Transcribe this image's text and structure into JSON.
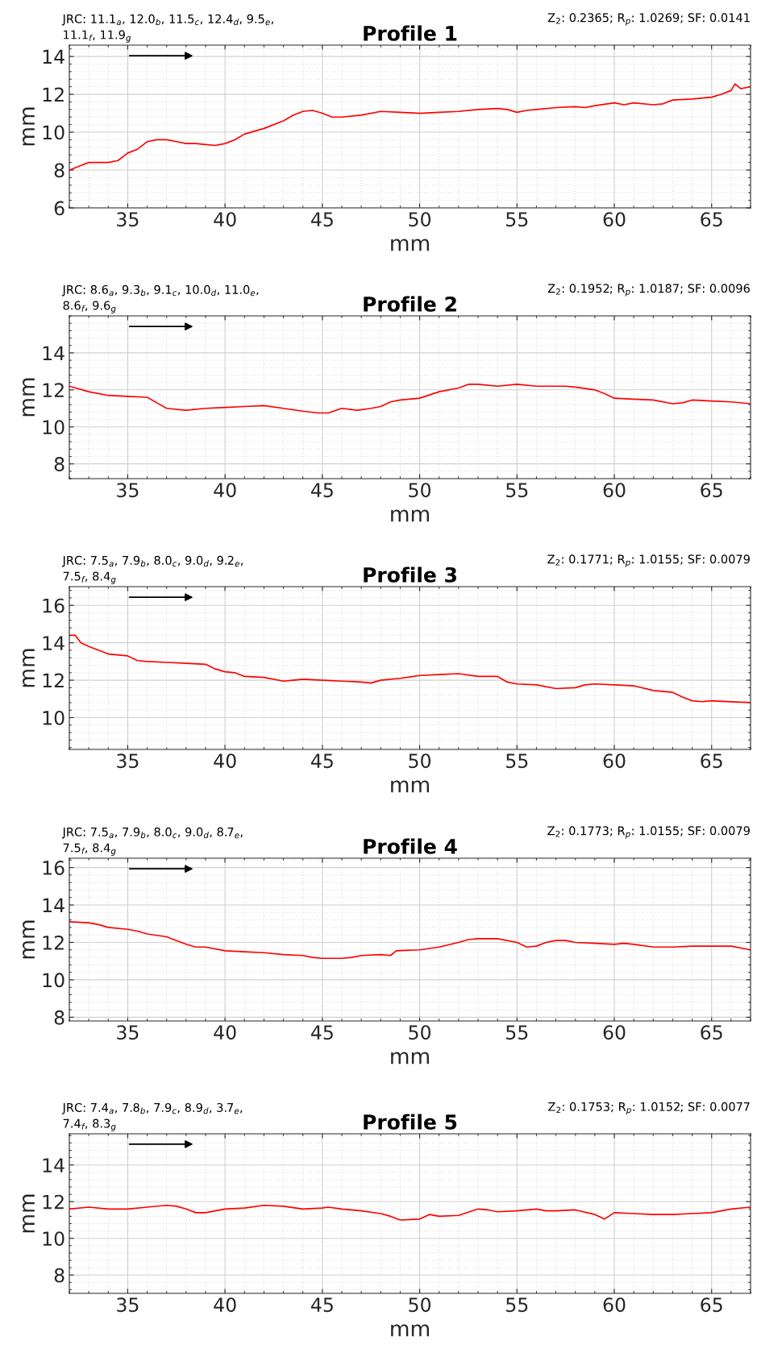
{
  "chart_data": [
    {
      "type": "line",
      "title": "Profile 1",
      "xlabel": "mm",
      "ylabel": "mm",
      "annotations": [
        "JRC: 11.1$_{a}$, 12.0$_{b}$, 11.5$_{c}$, 12.4$_{d}$, 9.5$_{e}$,\n11.1$_{f}$, 11.9$_{g}$",
        "Z$_{2}$: 0.2365; R$_{p}$: 1.0269; SF: 0.0141"
      ],
      "xlim": [
        32,
        67
      ],
      "ylim": [
        6,
        14.6
      ],
      "xticks": [
        35,
        40,
        45,
        50,
        55,
        60,
        65
      ],
      "yticks": [
        6,
        8,
        10,
        12,
        14
      ],
      "grid": true,
      "legend": false,
      "series": [
        {
          "color": "#ff0000",
          "x": [
            32,
            32.5,
            33,
            34,
            34.5,
            35,
            35.5,
            36,
            36.5,
            37,
            37.5,
            38,
            38.5,
            39,
            39.5,
            40,
            40.5,
            41,
            42,
            43,
            43.5,
            44,
            44.5,
            45,
            45.5,
            46,
            47,
            48,
            49,
            50,
            51,
            52,
            53,
            54,
            54.5,
            55,
            55.5,
            56,
            57,
            58,
            58.5,
            59,
            60,
            60.5,
            61,
            62,
            62.5,
            63,
            64,
            65,
            65.5,
            66,
            66.2,
            66.5,
            67
          ],
          "values": [
            8.0,
            8.2,
            8.4,
            8.4,
            8.5,
            8.9,
            9.1,
            9.5,
            9.6,
            9.6,
            9.5,
            9.4,
            9.4,
            9.35,
            9.3,
            9.4,
            9.6,
            9.9,
            10.2,
            10.6,
            10.9,
            11.1,
            11.15,
            11.0,
            10.8,
            10.8,
            10.9,
            11.1,
            11.05,
            11.0,
            11.05,
            11.1,
            11.2,
            11.25,
            11.2,
            11.05,
            11.15,
            11.2,
            11.3,
            11.35,
            11.3,
            11.4,
            11.55,
            11.45,
            11.55,
            11.45,
            11.5,
            11.7,
            11.75,
            11.85,
            12.0,
            12.2,
            12.55,
            12.3,
            12.4
          ]
        }
      ]
    },
    {
      "type": "line",
      "title": "Profile 2",
      "xlabel": "mm",
      "ylabel": "mm",
      "annotations": [
        "JRC: 8.6$_{a}$, 9.3$_{b}$, 9.1$_{c}$, 10.0$_{d}$, 11.0$_{e}$,\n8.6$_{f}$, 9.6$_{g}$",
        "Z$_{2}$: 0.1952; R$_{p}$: 1.0187; SF: 0.0096"
      ],
      "xlim": [
        32,
        67
      ],
      "ylim": [
        7.2,
        16
      ],
      "xticks": [
        35,
        40,
        45,
        50,
        55,
        60,
        65
      ],
      "yticks": [
        8,
        10,
        12,
        14
      ],
      "grid": true,
      "legend": false,
      "series": [
        {
          "color": "#ff0000",
          "x": [
            32,
            33,
            34,
            35,
            36,
            36.5,
            37,
            38,
            39,
            40,
            41,
            42,
            43,
            44,
            44.8,
            45.3,
            46,
            46.8,
            47.5,
            48,
            48.5,
            49,
            50,
            51,
            52,
            52.5,
            53,
            54,
            55,
            56,
            57,
            57.5,
            58,
            59,
            59.5,
            60,
            61,
            62,
            63,
            63.5,
            64,
            65,
            66,
            67
          ],
          "values": [
            12.2,
            11.9,
            11.7,
            11.65,
            11.6,
            11.3,
            11.0,
            10.9,
            11.0,
            11.05,
            11.1,
            11.15,
            11.0,
            10.85,
            10.75,
            10.75,
            11.0,
            10.9,
            11.0,
            11.1,
            11.35,
            11.45,
            11.55,
            11.9,
            12.1,
            12.3,
            12.3,
            12.2,
            12.3,
            12.2,
            12.2,
            12.2,
            12.15,
            12.0,
            11.8,
            11.55,
            11.5,
            11.45,
            11.25,
            11.3,
            11.45,
            11.4,
            11.35,
            11.25
          ]
        }
      ]
    },
    {
      "type": "line",
      "title": "Profile 3",
      "xlabel": "mm",
      "ylabel": "mm",
      "annotations": [
        "JRC: 7.5$_{a}$, 7.9$_{b}$, 8.0$_{c}$, 9.0$_{d}$, 9.2$_{e}$,\n7.5$_{f}$, 8.4$_{g}$",
        "Z$_{2}$: 0.1771; R$_{p}$: 1.0155; SF: 0.0079"
      ],
      "xlim": [
        32,
        67
      ],
      "ylim": [
        8.3,
        17
      ],
      "xticks": [
        35,
        40,
        45,
        50,
        55,
        60,
        65
      ],
      "yticks": [
        10,
        12,
        14,
        16
      ],
      "grid": true,
      "legend": false,
      "series": [
        {
          "color": "#ff0000",
          "x": [
            32,
            32.3,
            32.6,
            33,
            34,
            35,
            35.5,
            36,
            37,
            38,
            39,
            39.5,
            40,
            40.5,
            41,
            42,
            43,
            43.5,
            44,
            45,
            46,
            47,
            47.5,
            48,
            49,
            50,
            51,
            52,
            53,
            54,
            54.5,
            55,
            56,
            57,
            58,
            58.5,
            59,
            60,
            61,
            62,
            63,
            63.5,
            64,
            64.5,
            65,
            66,
            67
          ],
          "values": [
            14.4,
            14.4,
            14.0,
            13.8,
            13.4,
            13.3,
            13.05,
            13.0,
            12.95,
            12.9,
            12.85,
            12.6,
            12.45,
            12.4,
            12.2,
            12.15,
            11.95,
            12.0,
            12.05,
            12.0,
            11.95,
            11.9,
            11.85,
            12.0,
            12.1,
            12.25,
            12.3,
            12.35,
            12.2,
            12.2,
            11.9,
            11.8,
            11.75,
            11.55,
            11.6,
            11.75,
            11.8,
            11.75,
            11.7,
            11.45,
            11.35,
            11.1,
            10.9,
            10.85,
            10.9,
            10.85,
            10.8
          ]
        }
      ]
    },
    {
      "type": "line",
      "title": "Profile 4",
      "xlabel": "mm",
      "ylabel": "mm",
      "annotations": [
        "JRC: 7.5$_{a}$, 7.9$_{b}$, 8.0$_{c}$, 9.0$_{d}$, 8.7$_{e}$,\n7.5$_{f}$, 8.4$_{g}$",
        "Z$_{2}$: 0.1773; R$_{p}$: 1.0155; SF: 0.0079"
      ],
      "xlim": [
        32,
        67
      ],
      "ylim": [
        7.8,
        16.5
      ],
      "xticks": [
        35,
        40,
        45,
        50,
        55,
        60,
        65
      ],
      "yticks": [
        8,
        10,
        12,
        14,
        16
      ],
      "grid": true,
      "legend": false,
      "series": [
        {
          "color": "#ff0000",
          "x": [
            32,
            33,
            33.5,
            34,
            35,
            35.5,
            36,
            37,
            37.5,
            38,
            38.5,
            39,
            40,
            41,
            42,
            43,
            44,
            44.5,
            45,
            46,
            46.5,
            47,
            48,
            48.5,
            48.8,
            50,
            51,
            52,
            52.5,
            53,
            54,
            55,
            55.5,
            56,
            56.5,
            57,
            57.5,
            58,
            59,
            60,
            60.5,
            61,
            62,
            63,
            64,
            65,
            66,
            67
          ],
          "values": [
            13.1,
            13.05,
            12.95,
            12.8,
            12.7,
            12.6,
            12.45,
            12.3,
            12.1,
            11.9,
            11.75,
            11.75,
            11.55,
            11.5,
            11.45,
            11.35,
            11.3,
            11.2,
            11.15,
            11.15,
            11.2,
            11.3,
            11.35,
            11.3,
            11.55,
            11.6,
            11.75,
            12.0,
            12.15,
            12.2,
            12.2,
            12.0,
            11.75,
            11.8,
            12.0,
            12.1,
            12.1,
            12.0,
            11.95,
            11.9,
            11.95,
            11.9,
            11.75,
            11.75,
            11.8,
            11.8,
            11.8,
            11.6
          ]
        }
      ]
    },
    {
      "type": "line",
      "title": "Profile 5",
      "xlabel": "mm",
      "ylabel": "mm",
      "annotations": [
        "JRC: 7.4$_{a}$, 7.8$_{b}$, 7.9$_{c}$, 8.9$_{d}$, 3.7$_{e}$,\n7.4$_{f}$, 8.3$_{g}$",
        "Z$_{2}$: 0.1753; R$_{p}$: 1.0152; SF: 0.0077"
      ],
      "xlim": [
        32,
        67
      ],
      "ylim": [
        7,
        15.7
      ],
      "xticks": [
        35,
        40,
        45,
        50,
        55,
        60,
        65
      ],
      "yticks": [
        8,
        10,
        12,
        14
      ],
      "grid": true,
      "legend": false,
      "series": [
        {
          "color": "#ff0000",
          "x": [
            32,
            33,
            34,
            35,
            36,
            37,
            37.5,
            38,
            38.5,
            39,
            40,
            41,
            42,
            43,
            44,
            45,
            45.3,
            46,
            47,
            48,
            48.5,
            49,
            50,
            50.5,
            51,
            52,
            53,
            53.5,
            54,
            55,
            56,
            56.5,
            57,
            58,
            59,
            59.5,
            60,
            61,
            62,
            63,
            64,
            65,
            66,
            67
          ],
          "values": [
            11.6,
            11.7,
            11.6,
            11.6,
            11.7,
            11.8,
            11.75,
            11.6,
            11.4,
            11.4,
            11.6,
            11.65,
            11.8,
            11.75,
            11.6,
            11.65,
            11.7,
            11.6,
            11.5,
            11.35,
            11.2,
            11.0,
            11.05,
            11.3,
            11.2,
            11.25,
            11.6,
            11.55,
            11.45,
            11.5,
            11.6,
            11.5,
            11.5,
            11.55,
            11.3,
            11.05,
            11.4,
            11.35,
            11.3,
            11.3,
            11.35,
            11.4,
            11.6,
            11.7
          ]
        }
      ]
    }
  ]
}
